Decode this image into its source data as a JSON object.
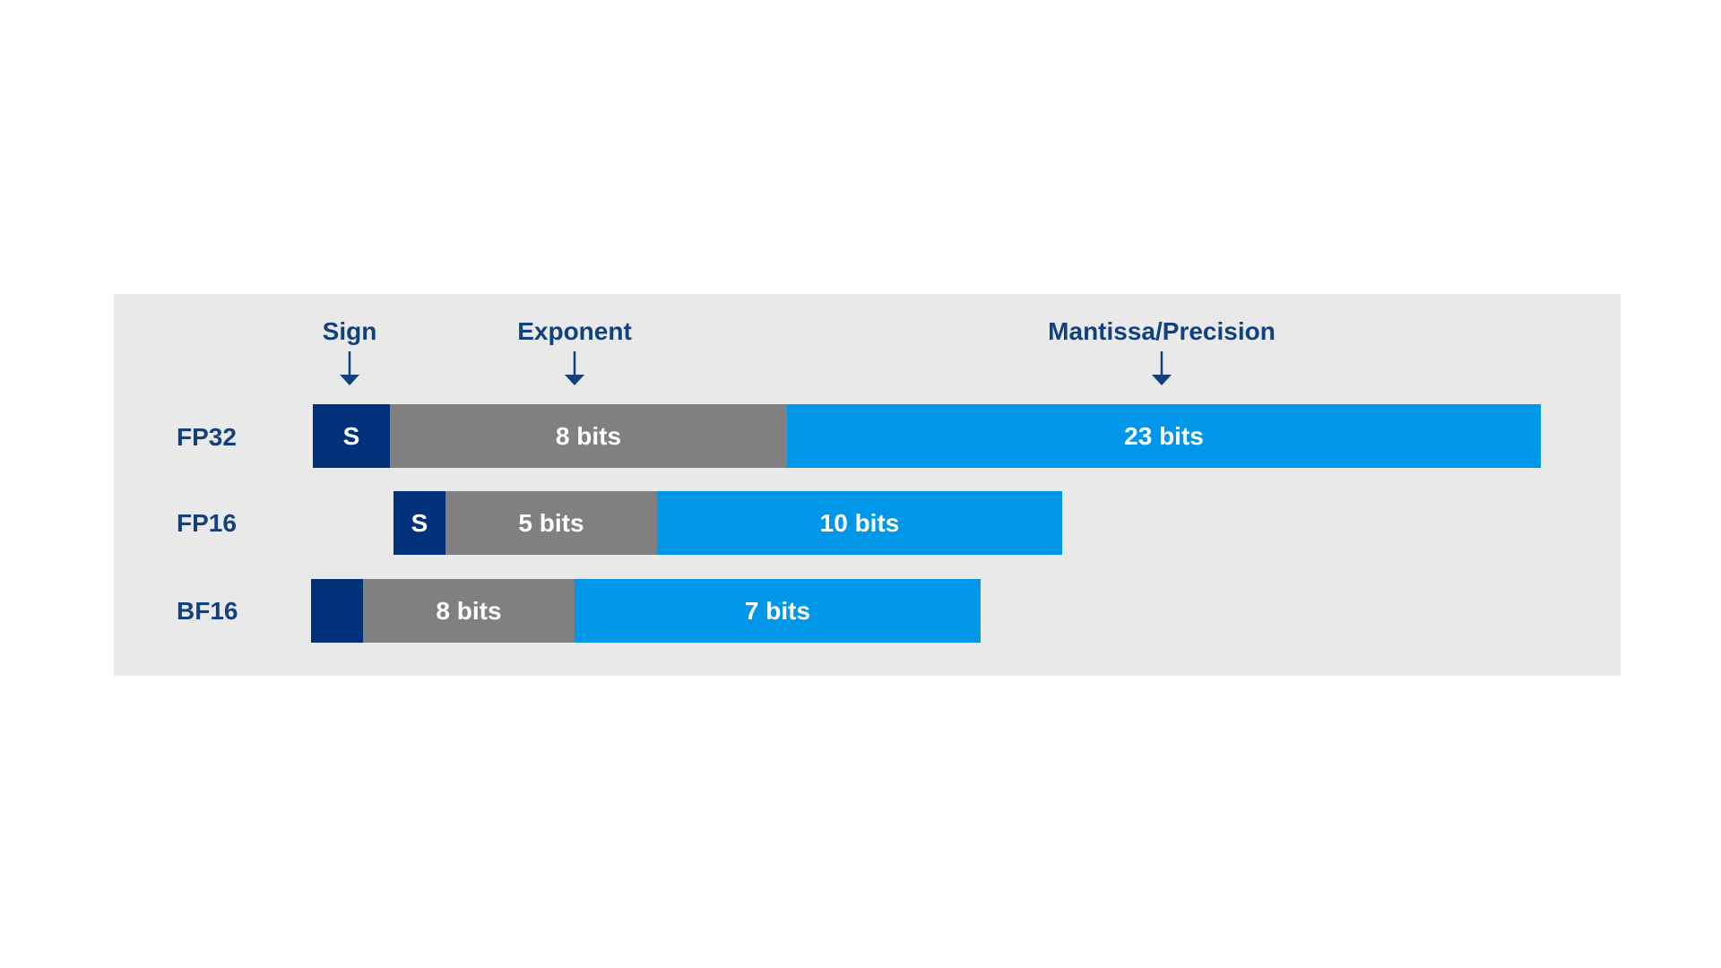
{
  "header": {
    "sign_label": "Sign",
    "exponent_label": "Exponent",
    "mantissa_label": "Mantissa/Precision"
  },
  "colors": {
    "sign": "#013179",
    "exponent": "#808080",
    "mantissa": "#0097e8",
    "panel": "#e9e9e9",
    "text": "#13417e"
  },
  "rows": [
    {
      "name": "FP32",
      "sign_label": "S",
      "exponent_label": "8 bits",
      "mantissa_label": "23 bits"
    },
    {
      "name": "FP16",
      "sign_label": "S",
      "exponent_label": "5 bits",
      "mantissa_label": "10 bits"
    },
    {
      "name": "BF16",
      "sign_label": "",
      "exponent_label": "8 bits",
      "mantissa_label": "7 bits"
    }
  ]
}
